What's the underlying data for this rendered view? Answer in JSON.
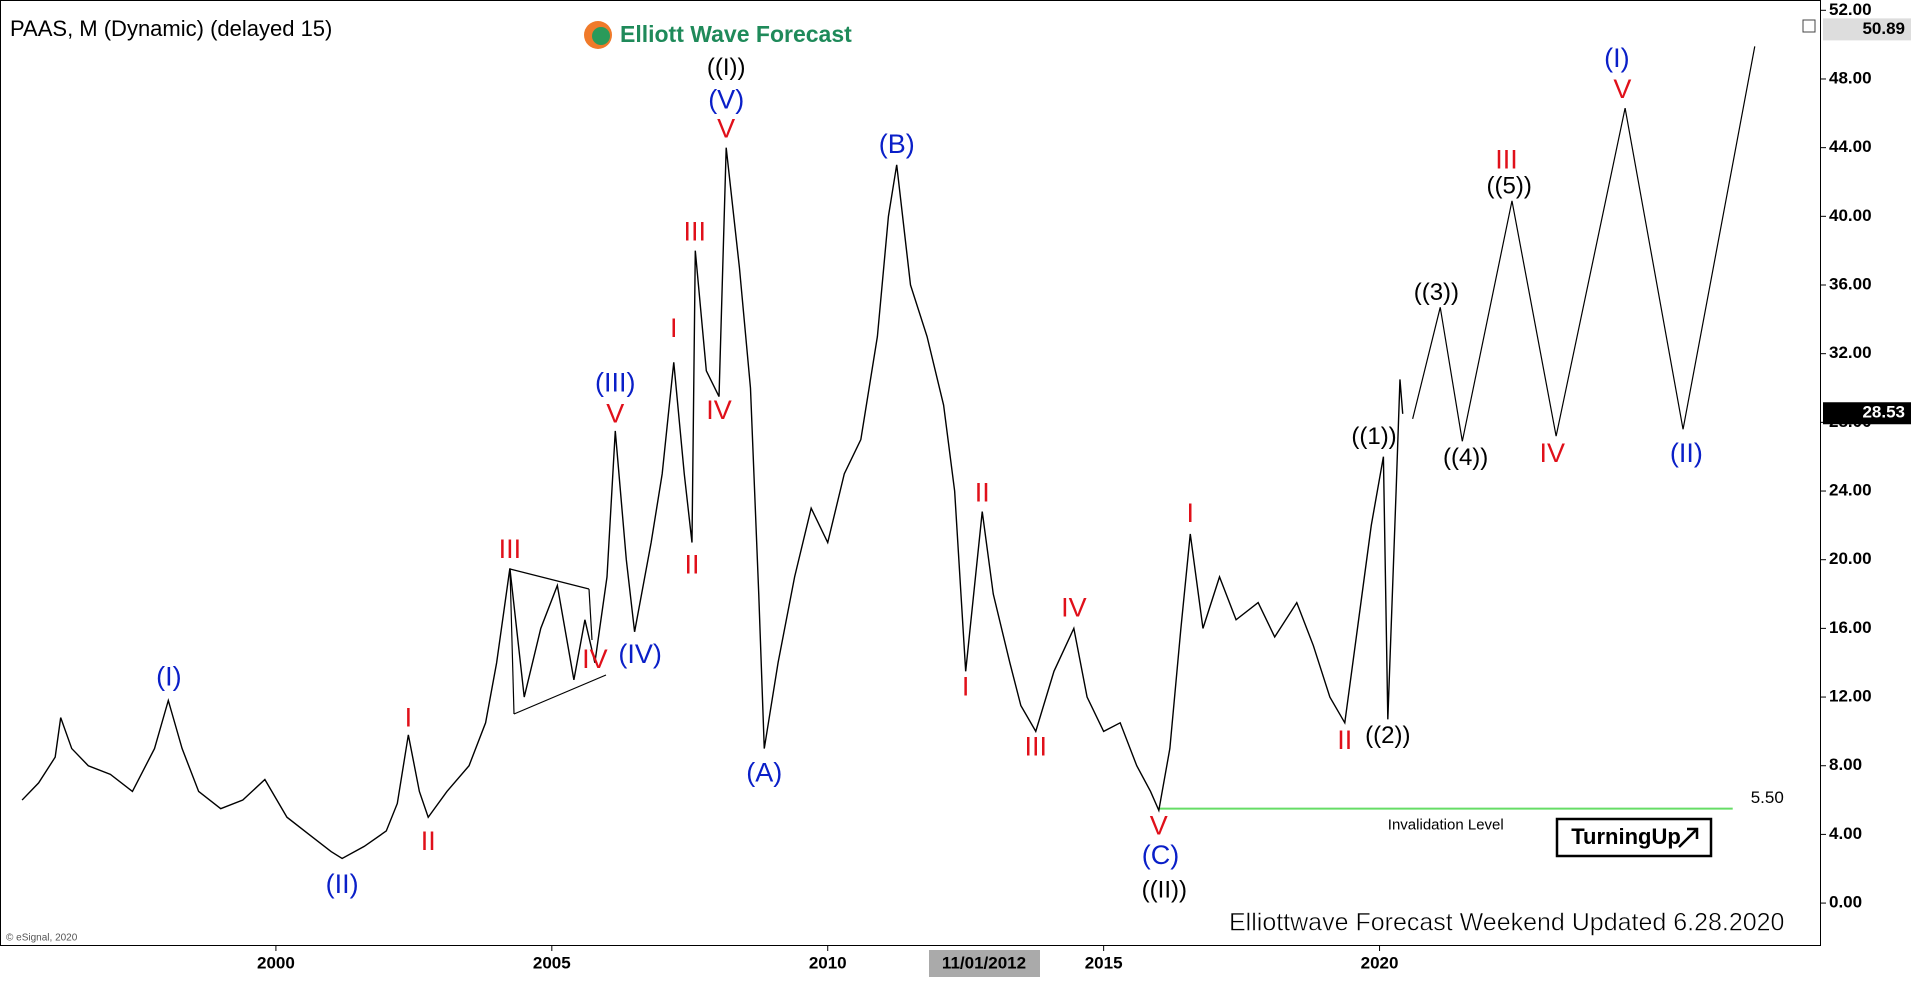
{
  "chart_data": {
    "type": "line",
    "title": "PAAS, M (Dynamic) (delayed 15)",
    "color": "#000000",
    "x": [
      1995.4,
      1995.7,
      1996.0,
      1996.1,
      1996.3,
      1996.6,
      1997.0,
      1997.4,
      1997.8,
      1998.05,
      1998.3,
      1998.6,
      1999.0,
      1999.4,
      1999.8,
      2000.2,
      2000.6,
      2001.0,
      2001.2,
      2001.6,
      2002.0,
      2002.2,
      2002.4,
      2002.6,
      2002.76,
      2003.1,
      2003.5,
      2003.8,
      2004.0,
      2004.24,
      2004.5,
      2004.8,
      2005.1,
      2005.4,
      2005.6,
      2005.78,
      2006.0,
      2006.15,
      2006.35,
      2006.5,
      2006.8,
      2007.0,
      2007.21,
      2007.4,
      2007.54,
      2007.6,
      2007.8,
      2008.03,
      2008.16,
      2008.4,
      2008.6,
      2008.75,
      2008.85,
      2009.1,
      2009.4,
      2009.7,
      2010.0,
      2010.3,
      2010.6,
      2010.9,
      2011.1,
      2011.25,
      2011.5,
      2011.8,
      2012.1,
      2012.3,
      2012.5,
      2012.8,
      2013.0,
      2013.3,
      2013.5,
      2013.77,
      2014.1,
      2014.46,
      2014.7,
      2015.0,
      2015.3,
      2015.6,
      2015.85,
      2016.0,
      2016.2,
      2016.4,
      2016.57,
      2016.8,
      2017.1,
      2017.4,
      2017.8,
      2018.1,
      2018.5,
      2018.8,
      2019.1,
      2019.37,
      2019.6,
      2019.85,
      2020.07,
      2020.15,
      2020.3,
      2020.37,
      2020.42
    ],
    "values": [
      6,
      7,
      8.5,
      10.8,
      9,
      8,
      7.5,
      6.5,
      9,
      11.8,
      9,
      6.5,
      5.5,
      6,
      7.2,
      5,
      4,
      3,
      2.6,
      3.3,
      4.2,
      5.8,
      9.8,
      6.5,
      5,
      6.5,
      8,
      10.5,
      14,
      19.5,
      12,
      16,
      18.5,
      13,
      16.5,
      14,
      19,
      27.5,
      20,
      15.8,
      21,
      25,
      31.5,
      25,
      21,
      38,
      31,
      29.5,
      44,
      37,
      30,
      18,
      9,
      14,
      19,
      23,
      21,
      25,
      27,
      33,
      40,
      43,
      36,
      33,
      29,
      24,
      13.5,
      22.8,
      18,
      14,
      11.5,
      10,
      13.5,
      16,
      12,
      10,
      10.5,
      8,
      6.5,
      5.4,
      9,
      16,
      21.5,
      16,
      19,
      16.5,
      17.5,
      15.5,
      17.5,
      15,
      12,
      10.5,
      16,
      22,
      26,
      10.7,
      24,
      30.5,
      28.5
    ],
    "projection": {
      "x": [
        2020.6,
        2021.1,
        2021.5,
        2022.4,
        2023.2,
        2024.45,
        2025.5,
        2026.8
      ],
      "values": [
        28.2,
        34.7,
        26.9,
        40.9,
        27.2,
        46.3,
        27.6,
        49.9
      ]
    },
    "xlim": [
      1995,
      2028
    ],
    "ylim": [
      -2.5,
      52.6
    ],
    "xticks": [
      2000,
      2005,
      2010,
      2015,
      2020
    ],
    "yticks": [
      {
        "value": 0,
        "label": "0.00"
      },
      {
        "value": 4,
        "label": "4.00"
      },
      {
        "value": 8,
        "label": "8.00"
      },
      {
        "value": 12,
        "label": "12.00"
      },
      {
        "value": 16,
        "label": "16.00"
      },
      {
        "value": 20,
        "label": "20.00"
      },
      {
        "value": 24,
        "label": "24.00"
      },
      {
        "value": 28,
        "label": "28.00"
      },
      {
        "value": 32,
        "label": "32.00"
      },
      {
        "value": 36,
        "label": "36.00"
      },
      {
        "value": 40,
        "label": "40.00"
      },
      {
        "value": 44,
        "label": "44.00"
      },
      {
        "value": 48,
        "label": "48.00"
      },
      {
        "value": 52,
        "label": "52.00"
      }
    ],
    "price_markers": [
      {
        "value": 28.53,
        "label": "28.53"
      },
      {
        "value": 50.89,
        "label": "50.89"
      }
    ],
    "invalidation": {
      "value": 5.5,
      "label": "5.50",
      "text": "Invalidation Level",
      "x": [
        2016.0,
        2026.4
      ],
      "color": "#66dd66"
    },
    "annotations": [
      {
        "text": "(I)",
        "x": 1998.06,
        "y": 13.1,
        "color": "#0a1fc8"
      },
      {
        "text": "(II)",
        "x": 2001.2,
        "y": 1.0,
        "color": "#0a1fc8"
      },
      {
        "text": "I",
        "x": 2002.4,
        "y": 10.7,
        "color": "#e0101a"
      },
      {
        "text": "II",
        "x": 2002.76,
        "y": 3.5,
        "color": "#e0101a"
      },
      {
        "text": "III",
        "x": 2004.24,
        "y": 20.5,
        "color": "#e0101a"
      },
      {
        "text": "IV",
        "x": 2005.78,
        "y": 14.1,
        "color": "#e0101a"
      },
      {
        "text": "V",
        "x": 2006.15,
        "y": 28.4,
        "color": "#e0101a"
      },
      {
        "text": "(III)",
        "x": 2006.15,
        "y": 30.2,
        "color": "#0a1fc8"
      },
      {
        "text": "(IV)",
        "x": 2006.6,
        "y": 14.4,
        "color": "#0a1fc8"
      },
      {
        "text": "I",
        "x": 2007.21,
        "y": 33.4,
        "color": "#e0101a"
      },
      {
        "text": "II",
        "x": 2007.54,
        "y": 19.6,
        "color": "#e0101a"
      },
      {
        "text": "III",
        "x": 2007.59,
        "y": 39.0,
        "color": "#e0101a"
      },
      {
        "text": "IV",
        "x": 2008.03,
        "y": 28.6,
        "color": "#e0101a"
      },
      {
        "text": "V",
        "x": 2008.16,
        "y": 45.0,
        "color": "#e0101a"
      },
      {
        "text": "(V)",
        "x": 2008.16,
        "y": 46.7,
        "color": "#0a1fc8"
      },
      {
        "text": "((I))",
        "x": 2008.16,
        "y": 48.6,
        "color": "#000000"
      },
      {
        "text": "(A)",
        "x": 2008.85,
        "y": 7.5,
        "color": "#0a1fc8"
      },
      {
        "text": "(B)",
        "x": 2011.25,
        "y": 44.1,
        "color": "#0a1fc8"
      },
      {
        "text": "I",
        "x": 2012.5,
        "y": 12.5,
        "color": "#e0101a"
      },
      {
        "text": "II",
        "x": 2012.8,
        "y": 23.8,
        "color": "#e0101a"
      },
      {
        "text": "III",
        "x": 2013.77,
        "y": 9.0,
        "color": "#e0101a"
      },
      {
        "text": "IV",
        "x": 2014.46,
        "y": 17.1,
        "color": "#e0101a"
      },
      {
        "text": "V",
        "x": 2016.0,
        "y": 4.4,
        "color": "#e0101a"
      },
      {
        "text": "(C)",
        "x": 2016.03,
        "y": 2.7,
        "color": "#0a1fc8"
      },
      {
        "text": "((II))",
        "x": 2016.1,
        "y": 0.7,
        "color": "#000000"
      },
      {
        "text": "I",
        "x": 2016.57,
        "y": 22.6,
        "color": "#e0101a"
      },
      {
        "text": "II",
        "x": 2019.37,
        "y": 9.4,
        "color": "#e0101a"
      },
      {
        "text": "((1))",
        "x": 2019.9,
        "y": 27.1,
        "color": "#000000"
      },
      {
        "text": "((2))",
        "x": 2020.15,
        "y": 9.7,
        "color": "#000000"
      },
      {
        "text": "((3))",
        "x": 2021.03,
        "y": 35.5,
        "color": "#000000"
      },
      {
        "text": "((4))",
        "x": 2021.56,
        "y": 25.9,
        "color": "#000000"
      },
      {
        "text": "III",
        "x": 2022.3,
        "y": 43.2,
        "color": "#e0101a"
      },
      {
        "text": "((5))",
        "x": 2022.35,
        "y": 41.7,
        "color": "#000000"
      },
      {
        "text": "IV",
        "x": 2023.13,
        "y": 26.1,
        "color": "#e0101a"
      },
      {
        "text": "(I)",
        "x": 2024.3,
        "y": 49.1,
        "color": "#0a1fc8"
      },
      {
        "text": "V",
        "x": 2024.4,
        "y": 47.3,
        "color": "#e0101a"
      },
      {
        "text": "(II)",
        "x": 2025.56,
        "y": 26.1,
        "color": "#0a1fc8"
      }
    ]
  },
  "logo": "Elliott Wave Forecast",
  "footer": "Elliottwave Forecast Weekend Updated 6.28.2020",
  "badge": "TurningUp",
  "copyright": "© eSignal, 2020",
  "cursor_date": "11/01/2012"
}
